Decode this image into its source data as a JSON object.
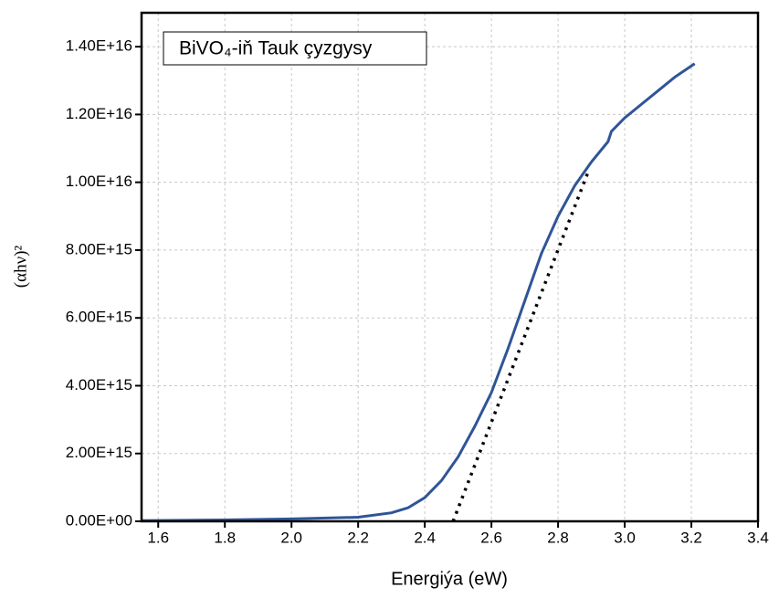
{
  "chart_data": {
    "type": "line",
    "title": "BiVO₄-iň Tauk çyzgysy",
    "x_label": "Energiýa (eW)",
    "y_label": "(αhν)²",
    "xlim": [
      1.55,
      3.4
    ],
    "xticks": [
      1.6,
      1.8,
      {
        "value": 2,
        "label": "2.0"
      },
      2.2,
      2.4,
      2.6,
      2.8,
      {
        "value": 3,
        "label": "3.0"
      },
      3.2,
      3.4
    ],
    "ylim": [
      0,
      1.5e+16
    ],
    "yticks": [
      {
        "value": 0,
        "label": "0.00E+00"
      },
      {
        "value": 2000000000000000.0,
        "label": "2.00E+15"
      },
      {
        "value": 4000000000000000.0,
        "label": "4.00E+15"
      },
      {
        "value": 6000000000000000.0,
        "label": "6.00E+15"
      },
      {
        "value": 8000000000000000.0,
        "label": "8.00E+15"
      },
      {
        "value": 1e+16,
        "label": "1.00E+16"
      },
      {
        "value": 1.2e+16,
        "label": "1.20E+16"
      },
      {
        "value": 1.4e+16,
        "label": "1.40E+16"
      }
    ],
    "grid": true,
    "series": [
      {
        "color": "#2f5597",
        "style": "solid",
        "x": [
          1.55,
          1.8,
          2.0,
          2.2,
          2.3,
          2.35,
          2.4,
          2.45,
          2.5,
          2.55,
          2.6,
          2.65,
          2.7,
          2.75,
          2.8,
          2.85,
          2.9,
          2.95,
          2.96,
          3.0,
          3.05,
          3.1,
          3.15,
          3.21
        ],
        "values": [
          20000000000000.0,
          40000000000000.0,
          70000000000000.0,
          120000000000000.0,
          250000000000000.0,
          400000000000000.0,
          700000000000000.0,
          1200000000000000.0,
          1900000000000000.0,
          2800000000000000.0,
          3800000000000000.0,
          5100000000000000.0,
          6500000000000000.0,
          7900000000000000.0,
          9000000000000000.0,
          9900000000000000.0,
          1.06e+16,
          1.12e+16,
          1.15e+16,
          1.19e+16,
          1.23e+16,
          1.27e+16,
          1.31e+16,
          1.35e+16
        ]
      },
      {
        "color": "#000000",
        "style": "dotted",
        "x": [
          2.485,
          2.89
        ],
        "values": [
          0,
          1.03e+16
        ]
      }
    ]
  }
}
